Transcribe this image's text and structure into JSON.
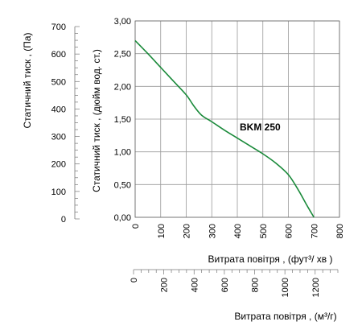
{
  "chart_data": {
    "type": "line",
    "title": "",
    "series": [
      {
        "name": "BKM 250",
        "color": "#1a8a3a",
        "x": [
          0,
          50,
          100,
          150,
          200,
          230,
          260,
          300,
          350,
          400,
          450,
          500,
          550,
          600,
          640,
          670,
          700
        ],
        "y": [
          2.7,
          2.5,
          2.29,
          2.08,
          1.87,
          1.7,
          1.56,
          1.46,
          1.33,
          1.21,
          1.09,
          0.97,
          0.83,
          0.65,
          0.41,
          0.2,
          0.0
        ]
      }
    ],
    "xlabel": "Витрата повітря , (фут³/  хв )",
    "ylabel": "Статичний тиск , (дюйм вод. ст.)",
    "xlim": [
      0,
      800
    ],
    "ylim": [
      0,
      3
    ],
    "grid": true,
    "x_ticks": [
      "0",
      "100",
      "200",
      "300",
      "400",
      "500",
      "600",
      "700",
      "800"
    ],
    "y_ticks": [
      "0,00",
      "0,50",
      "1,00",
      "1,50",
      "2,00",
      "2,50",
      "3,00"
    ],
    "secondary_x": {
      "label": "Витрата повітря , (м³/г)",
      "ticks": [
        "0",
        "200",
        "400",
        "600",
        "800",
        "1000",
        "1200"
      ]
    },
    "secondary_y": {
      "label": "Статичний тиск , (Па)",
      "ticks": [
        "0",
        "100",
        "200",
        "300",
        "400",
        "500",
        "600",
        "700"
      ]
    }
  }
}
